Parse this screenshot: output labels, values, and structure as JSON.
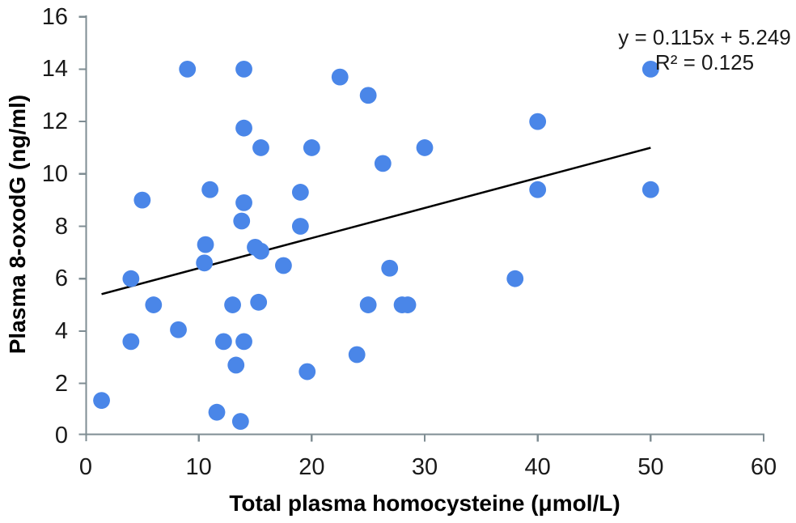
{
  "colors": {
    "background": "#ffffff",
    "axis": "#7f8d93",
    "text": "#1a1a1a",
    "point_fill": "#4a86e8",
    "trendline": "#000000"
  },
  "chart_data": {
    "type": "scatter",
    "title": "",
    "xlabel": "Total plasma homocysteine (μmol/L)",
    "ylabel": "Plasma 8-oxodG (ng/ml)",
    "xlim": [
      0,
      60
    ],
    "ylim": [
      0,
      16
    ],
    "x_ticks": [
      0,
      10,
      20,
      30,
      40,
      50,
      60
    ],
    "y_ticks": [
      0,
      2,
      4,
      6,
      8,
      10,
      12,
      14,
      16
    ],
    "grid": false,
    "legend_position": "none",
    "annotation": {
      "equation": "y = 0.115x + 5.249",
      "r_squared": "R² = 0.125"
    },
    "trendline": {
      "slope": 0.115,
      "intercept": 5.249,
      "x_start": 1.4,
      "x_end": 50,
      "color": "#000000"
    },
    "series": [
      {
        "name": "observations",
        "marker": "circle",
        "color": "#4a86e8",
        "points": [
          [
            1.4,
            1.35
          ],
          [
            4,
            3.6
          ],
          [
            4,
            6
          ],
          [
            5,
            9
          ],
          [
            6,
            5
          ],
          [
            8.2,
            4.05
          ],
          [
            9,
            14
          ],
          [
            10.5,
            6.6
          ],
          [
            10.6,
            7.3
          ],
          [
            11,
            9.4
          ],
          [
            11.6,
            0.9
          ],
          [
            12.2,
            3.6
          ],
          [
            13,
            5
          ],
          [
            13.3,
            2.7
          ],
          [
            13.7,
            0.55
          ],
          [
            13.8,
            8.2
          ],
          [
            14,
            3.6
          ],
          [
            14,
            8.9
          ],
          [
            14,
            11.75
          ],
          [
            14,
            14
          ],
          [
            15,
            7.2
          ],
          [
            15.3,
            5.1
          ],
          [
            15.5,
            7.05
          ],
          [
            15.5,
            11
          ],
          [
            17.5,
            6.5
          ],
          [
            19,
            8
          ],
          [
            19,
            9.3
          ],
          [
            19.6,
            2.45
          ],
          [
            20,
            11
          ],
          [
            22.5,
            13.7
          ],
          [
            24,
            3.1
          ],
          [
            25,
            5
          ],
          [
            25,
            13
          ],
          [
            26.3,
            10.4
          ],
          [
            26.9,
            6.4
          ],
          [
            28,
            5
          ],
          [
            28.5,
            5
          ],
          [
            30,
            11
          ],
          [
            38,
            6
          ],
          [
            40,
            9.4
          ],
          [
            40,
            12
          ],
          [
            50,
            9.4
          ],
          [
            50,
            14
          ]
        ]
      }
    ]
  }
}
